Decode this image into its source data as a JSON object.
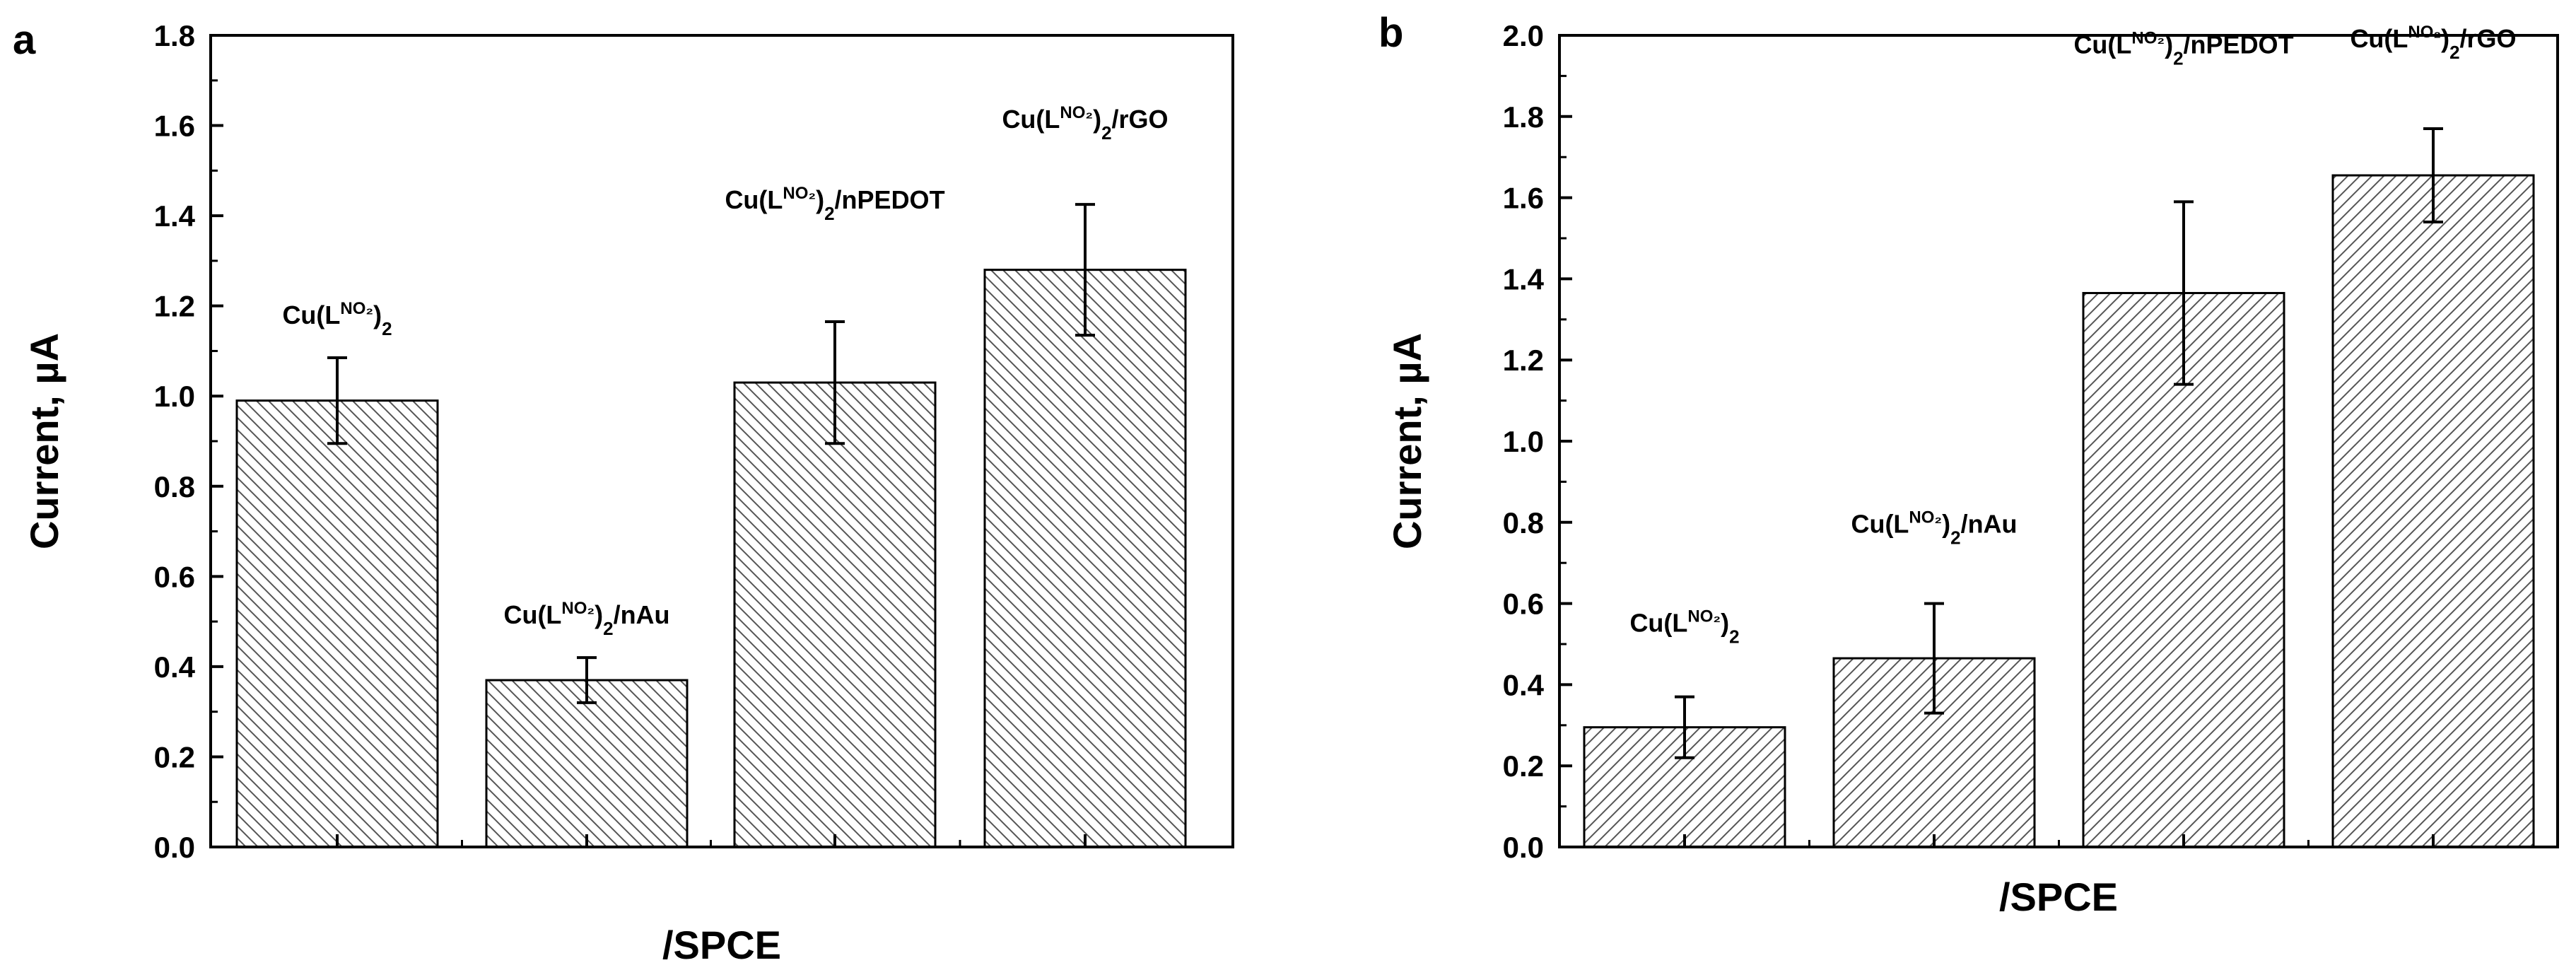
{
  "colors": {
    "bar_fill": "#ffffff",
    "hatch": "#555555",
    "stroke": "#000000"
  },
  "chart_data": [
    {
      "type": "bar",
      "panel": "a",
      "title": "",
      "xlabel": "/SPCE",
      "ylabel": "Current, µA",
      "ylim": [
        0,
        1.8
      ],
      "yticks": [
        0.0,
        0.2,
        0.4,
        0.6,
        0.8,
        1.0,
        1.2,
        1.4,
        1.6,
        1.8
      ],
      "hatch": "backslash",
      "grid": false,
      "categories": [
        "Cu(L^{NO₂})_2",
        "Cu(L^{NO₂})_2/nAu",
        "Cu(L^{NO₂})_2/nPEDOT",
        "Cu(L^{NO₂})_2/rGO"
      ],
      "label_parts": [
        [
          [
            "Cu(L",
            "n"
          ],
          [
            "NO₂",
            "sup"
          ],
          [
            ")",
            "n"
          ],
          [
            "2",
            "sub"
          ]
        ],
        [
          [
            "Cu(L",
            "n"
          ],
          [
            "NO₂",
            "sup"
          ],
          [
            ")",
            "n"
          ],
          [
            "2",
            "sub"
          ],
          [
            "/nAu",
            "n"
          ]
        ],
        [
          [
            "Cu(L",
            "n"
          ],
          [
            "NO₂",
            "sup"
          ],
          [
            ")",
            "n"
          ],
          [
            "2",
            "sub"
          ],
          [
            "/nPEDOT",
            "n"
          ]
        ],
        [
          [
            "Cu(L",
            "n"
          ],
          [
            "NO₂",
            "sup"
          ],
          [
            ")",
            "n"
          ],
          [
            "2",
            "sub"
          ],
          [
            "/rGO",
            "n"
          ]
        ]
      ],
      "values": [
        0.99,
        0.37,
        1.03,
        1.28
      ],
      "errors": [
        0.095,
        0.05,
        0.135,
        0.145
      ]
    },
    {
      "type": "bar",
      "panel": "b",
      "title": "",
      "xlabel": "/SPCE",
      "ylabel": "Current, µA",
      "ylim": [
        0,
        2.0
      ],
      "yticks": [
        0.0,
        0.2,
        0.4,
        0.6,
        0.8,
        1.0,
        1.2,
        1.4,
        1.6,
        1.8,
        2.0
      ],
      "hatch": "slash",
      "grid": false,
      "categories": [
        "Cu(L^{NO₂})_2",
        "Cu(L^{NO₂})_2/nAu",
        "Cu(L^{NO₂})_2/nPEDOT",
        "Cu(L^{NO₂})_2/rGO"
      ],
      "label_parts": [
        [
          [
            "Cu(L",
            "n"
          ],
          [
            "NO₂",
            "sup"
          ],
          [
            ")",
            "n"
          ],
          [
            "2",
            "sub"
          ]
        ],
        [
          [
            "Cu(L",
            "n"
          ],
          [
            "NO₂",
            "sup"
          ],
          [
            ")",
            "n"
          ],
          [
            "2",
            "sub"
          ],
          [
            "/nAu",
            "n"
          ]
        ],
        [
          [
            "Cu(L",
            "n"
          ],
          [
            "NO₂",
            "sup"
          ],
          [
            ")",
            "n"
          ],
          [
            "2",
            "sub"
          ],
          [
            "/nPEDOT",
            "n"
          ]
        ],
        [
          [
            "Cu(L",
            "n"
          ],
          [
            "NO₂",
            "sup"
          ],
          [
            ")",
            "n"
          ],
          [
            "2",
            "sub"
          ],
          [
            "/rGO",
            "n"
          ]
        ]
      ],
      "values": [
        0.295,
        0.465,
        1.365,
        1.655
      ],
      "errors": [
        0.075,
        0.135,
        0.225,
        0.115
      ]
    }
  ]
}
